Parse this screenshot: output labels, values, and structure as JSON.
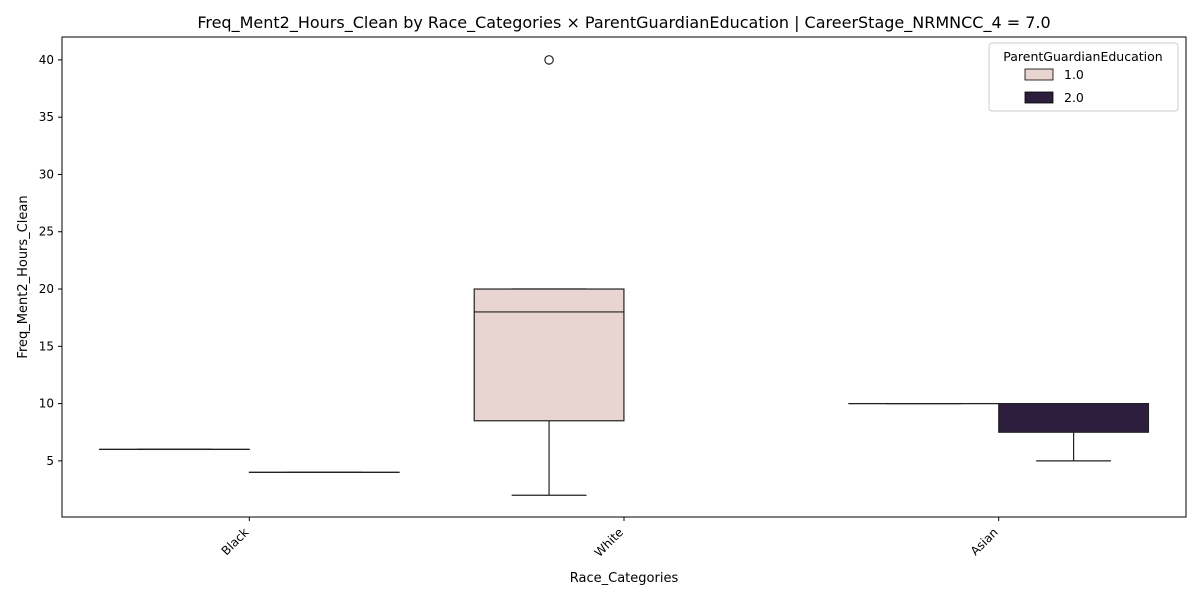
{
  "chart_data": {
    "type": "box",
    "title": "Freq_Ment2_Hours_Clean by Race_Categories × ParentGuardianEducation | CareerStage_NRMNCC_4 = 7.0",
    "xlabel": "Race_Categories",
    "ylabel": "Freq_Ment2_Hours_Clean",
    "categories": [
      "Black",
      "White",
      "Asian"
    ],
    "ylim": [
      0.1,
      42
    ],
    "yticks": [
      5,
      10,
      15,
      20,
      25,
      30,
      35,
      40
    ],
    "grid": false,
    "legend": {
      "title": "ParentGuardianEducation",
      "placement": "top-right"
    },
    "series": [
      {
        "name": "1.0",
        "color": "#e8d4d0",
        "boxes": [
          {
            "category": "Black",
            "q1": 6,
            "median": 6,
            "q3": 6,
            "whisker_low": 6,
            "whisker_high": 6,
            "outliers": []
          },
          {
            "category": "White",
            "q1": 8.5,
            "median": 18,
            "q3": 20,
            "whisker_low": 2,
            "whisker_high": 20,
            "outliers": [
              40
            ]
          },
          {
            "category": "Asian",
            "q1": 10,
            "median": 10,
            "q3": 10,
            "whisker_low": 10,
            "whisker_high": 10,
            "outliers": []
          }
        ]
      },
      {
        "name": "2.0",
        "color": "#2d1e3e",
        "boxes": [
          {
            "category": "Black",
            "q1": 4,
            "median": 4,
            "q3": 4,
            "whisker_low": 4,
            "whisker_high": 4,
            "outliers": []
          },
          {
            "category": "Asian",
            "q1": 7.5,
            "median": 10,
            "q3": 10,
            "whisker_low": 5,
            "whisker_high": 10,
            "outliers": []
          }
        ]
      }
    ]
  }
}
